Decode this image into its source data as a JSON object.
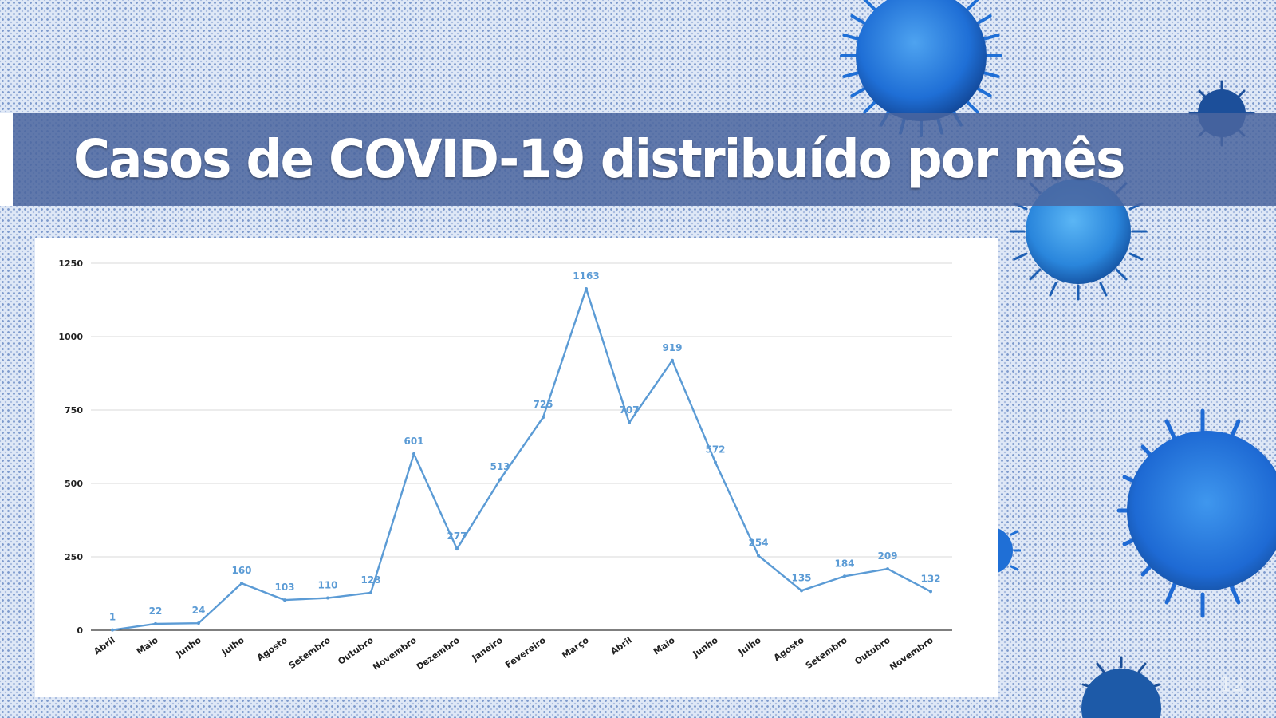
{
  "slide": {
    "title": "Casos de COVID-19 distribuído por mês",
    "page_number": "12"
  },
  "colors": {
    "band": "#4a659e",
    "line": "#5b9bd5",
    "label": "#5b9bd5",
    "virus": "#1f6fd6"
  },
  "icons": [
    "virus-icon"
  ],
  "chart_data": {
    "type": "line",
    "title": "",
    "xlabel": "",
    "ylabel": "",
    "categories": [
      "Abril",
      "Maio",
      "Junho",
      "Julho",
      "Agosto",
      "Setembro",
      "Outubro",
      "Novembro",
      "Dezembro",
      "Janeiro",
      "Fevereiro",
      "Março",
      "Abril",
      "Maio",
      "Junho",
      "Julho",
      "Agosto",
      "Setembro",
      "Outubro",
      "Novembro"
    ],
    "values": [
      1,
      22,
      24,
      160,
      103,
      110,
      128,
      601,
      277,
      513,
      725,
      1163,
      707,
      919,
      572,
      254,
      135,
      184,
      209,
      132
    ],
    "ylim": [
      0,
      1250
    ],
    "yticks": [
      "0",
      "250",
      "500",
      "750",
      "1000",
      "1250"
    ],
    "grid": true,
    "legend": "none"
  }
}
